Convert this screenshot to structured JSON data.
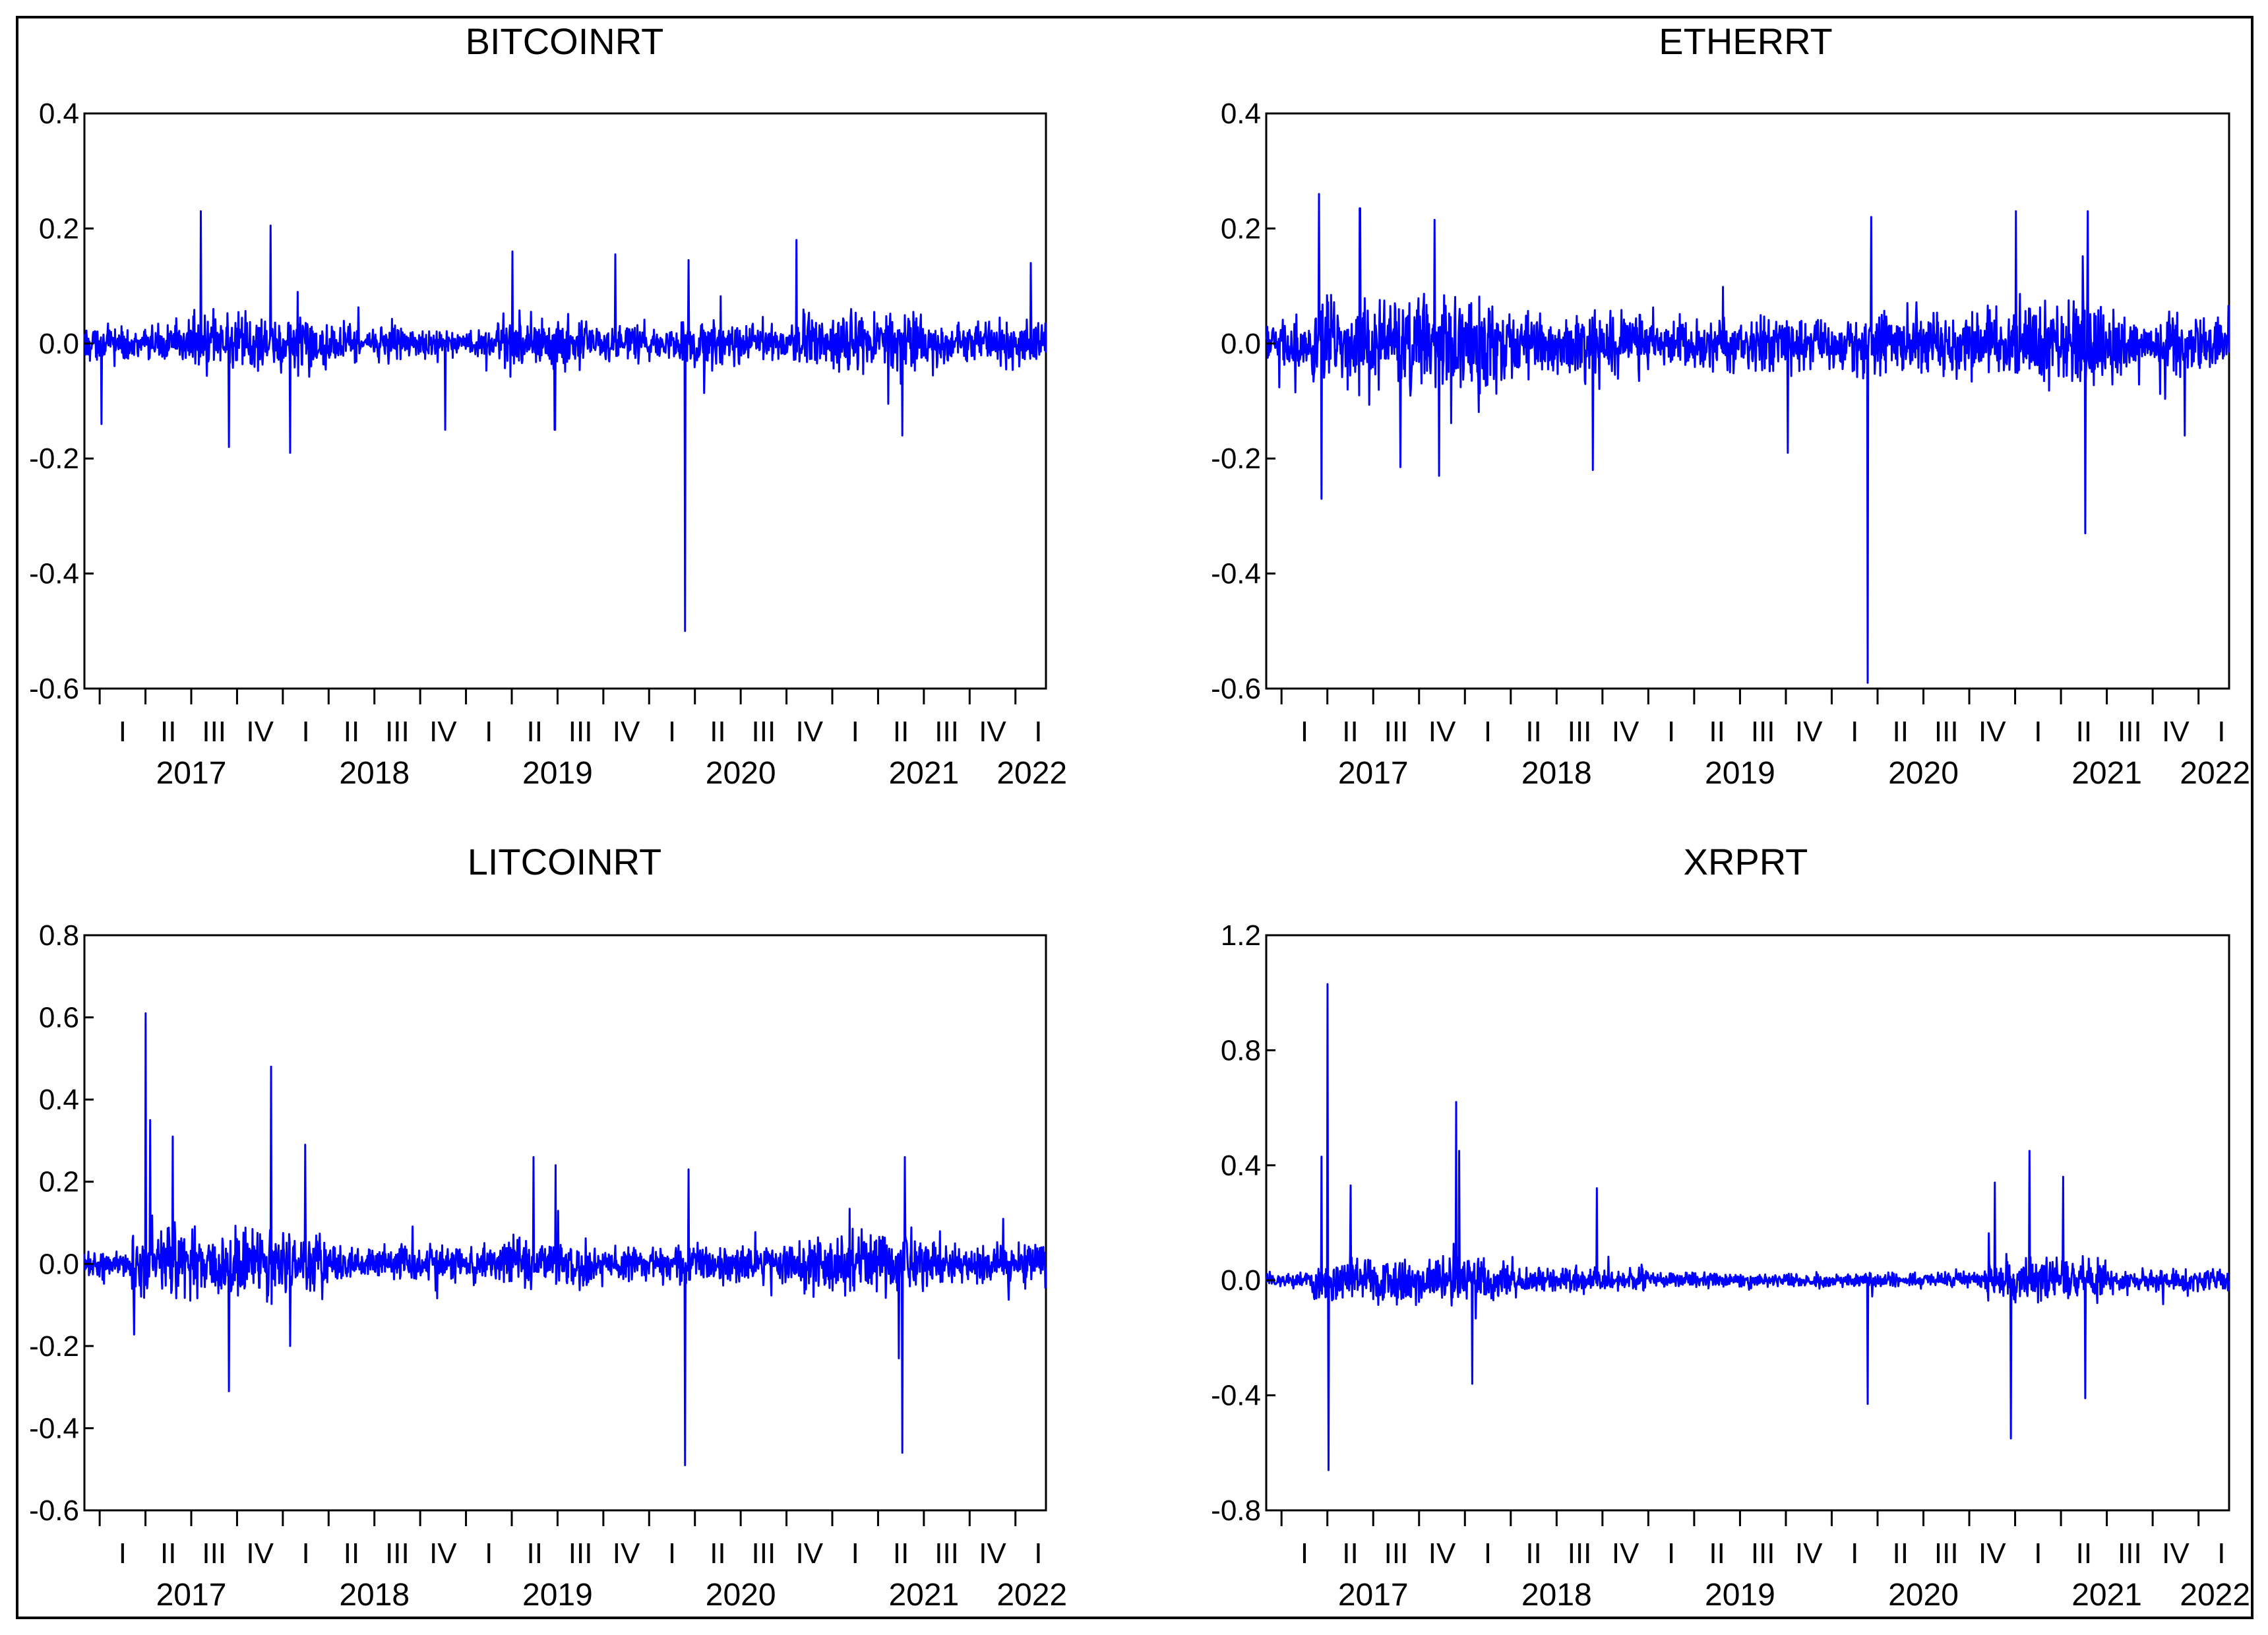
{
  "chart_data": [
    {
      "type": "line",
      "title": "BITCOINRT",
      "xlabel": "",
      "ylabel": "",
      "ylim": [
        -0.6,
        0.4
      ],
      "yticks": [
        0.4,
        0.2,
        0.0,
        -0.2,
        -0.4,
        -0.6
      ],
      "ytick_labels": [
        "0.4",
        "0.2",
        "0.0",
        "-0.2",
        "-0.4",
        "-0.6"
      ],
      "quarter_labels": [
        "I",
        "II",
        "III",
        "IV",
        "I",
        "II",
        "III",
        "IV",
        "I",
        "II",
        "III",
        "IV",
        "I",
        "II",
        "III",
        "IV",
        "I",
        "II",
        "III",
        "IV",
        "I"
      ],
      "year_labels": [
        "2017",
        "2018",
        "2019",
        "2020",
        "2021",
        "2022"
      ],
      "grid": false,
      "color": "#0000ff",
      "x_range": [
        "2016-12",
        "2022-03"
      ],
      "base_amplitude": 0.05,
      "volatility_regimes": [
        {
          "from": "2016-12",
          "to": "2017-06",
          "level": 0.8
        },
        {
          "from": "2017-06",
          "to": "2018-04",
          "level": 1.4
        },
        {
          "from": "2018-04",
          "to": "2018-09",
          "level": 0.9
        },
        {
          "from": "2018-09",
          "to": "2019-03",
          "level": 0.6
        },
        {
          "from": "2019-03",
          "to": "2019-09",
          "level": 1.3
        },
        {
          "from": "2019-09",
          "to": "2020-03",
          "level": 0.8
        },
        {
          "from": "2020-03",
          "to": "2020-06",
          "level": 1.1
        },
        {
          "from": "2020-06",
          "to": "2020-11",
          "level": 0.8
        },
        {
          "from": "2020-11",
          "to": "2021-07",
          "level": 1.5
        },
        {
          "from": "2021-07",
          "to": "2022-03",
          "level": 1.0
        }
      ],
      "spikes": [
        {
          "date": "2017-01-05",
          "value": -0.14
        },
        {
          "date": "2017-09-15",
          "value": -0.18
        },
        {
          "date": "2017-07-20",
          "value": 0.23
        },
        {
          "date": "2017-12-07",
          "value": 0.205
        },
        {
          "date": "2018-01-16",
          "value": -0.19
        },
        {
          "date": "2018-11-20",
          "value": -0.15
        },
        {
          "date": "2019-04-02",
          "value": 0.16
        },
        {
          "date": "2019-06-26",
          "value": -0.15
        },
        {
          "date": "2019-10-25",
          "value": 0.155
        },
        {
          "date": "2020-03-12",
          "value": -0.5
        },
        {
          "date": "2020-03-19",
          "value": 0.145
        },
        {
          "date": "2020-10-21",
          "value": 0.18
        },
        {
          "date": "2021-05-19",
          "value": -0.16
        },
        {
          "date": "2022-02-01",
          "value": 0.14
        }
      ]
    },
    {
      "type": "line",
      "title": "ETHERRT",
      "xlabel": "",
      "ylabel": "",
      "ylim": [
        -0.6,
        0.4
      ],
      "yticks": [
        0.4,
        0.2,
        0.0,
        -0.2,
        -0.4,
        -0.6
      ],
      "ytick_labels": [
        "0.4",
        "0.2",
        "0.0",
        "-0.2",
        "-0.4",
        "-0.6"
      ],
      "quarter_labels": [
        "I",
        "II",
        "III",
        "IV",
        "I",
        "II",
        "III",
        "IV",
        "I",
        "II",
        "III",
        "IV",
        "I",
        "II",
        "III",
        "IV",
        "I",
        "II",
        "III",
        "IV",
        "I"
      ],
      "year_labels": [
        "2017",
        "2018",
        "2019",
        "2020",
        "2021",
        "2022"
      ],
      "grid": false,
      "color": "#0000ff",
      "x_range": [
        "2016-12",
        "2022-03"
      ],
      "base_amplitude": 0.07,
      "volatility_regimes": [
        {
          "from": "2016-12",
          "to": "2017-03",
          "level": 0.8
        },
        {
          "from": "2017-03",
          "to": "2018-04",
          "level": 1.6
        },
        {
          "from": "2018-04",
          "to": "2019-01",
          "level": 1.2
        },
        {
          "from": "2019-01",
          "to": "2020-03",
          "level": 0.9
        },
        {
          "from": "2020-03",
          "to": "2021-01",
          "level": 1.1
        },
        {
          "from": "2021-01",
          "to": "2021-07",
          "level": 1.5
        },
        {
          "from": "2021-07",
          "to": "2022-03",
          "level": 1.0
        }
      ],
      "spikes": [
        {
          "date": "2017-03-15",
          "value": 0.26
        },
        {
          "date": "2017-03-20",
          "value": -0.27
        },
        {
          "date": "2017-06-05",
          "value": 0.235
        },
        {
          "date": "2017-08-25",
          "value": -0.215
        },
        {
          "date": "2017-11-01",
          "value": 0.215
        },
        {
          "date": "2017-11-10",
          "value": -0.23
        },
        {
          "date": "2018-09-12",
          "value": -0.22
        },
        {
          "date": "2019-10-05",
          "value": -0.19
        },
        {
          "date": "2020-03-12",
          "value": -0.59
        },
        {
          "date": "2020-03-19",
          "value": 0.22
        },
        {
          "date": "2021-01-03",
          "value": 0.23
        },
        {
          "date": "2021-05-19",
          "value": -0.33
        },
        {
          "date": "2021-05-24",
          "value": 0.23
        },
        {
          "date": "2021-12-04",
          "value": -0.16
        }
      ]
    },
    {
      "type": "line",
      "title": "LITCOINRT",
      "xlabel": "",
      "ylabel": "",
      "ylim": [
        -0.6,
        0.8
      ],
      "yticks": [
        0.8,
        0.6,
        0.4,
        0.2,
        0.0,
        -0.2,
        -0.4,
        -0.6
      ],
      "ytick_labels": [
        "0.8",
        "0.6",
        "0.4",
        "0.2",
        "0.0",
        "-0.2",
        "-0.4",
        "-0.6"
      ],
      "quarter_labels": [
        "I",
        "II",
        "III",
        "IV",
        "I",
        "II",
        "III",
        "IV",
        "I",
        "II",
        "III",
        "IV",
        "I",
        "II",
        "III",
        "IV",
        "I",
        "II",
        "III",
        "IV",
        "I"
      ],
      "year_labels": [
        "2017",
        "2018",
        "2019",
        "2020",
        "2021",
        "2022"
      ],
      "grid": false,
      "color": "#0000ff",
      "x_range": [
        "2016-12",
        "2022-03"
      ],
      "base_amplitude": 0.07,
      "volatility_regimes": [
        {
          "from": "2016-12",
          "to": "2017-03",
          "level": 0.7
        },
        {
          "from": "2017-03",
          "to": "2018-04",
          "level": 1.7
        },
        {
          "from": "2018-04",
          "to": "2019-03",
          "level": 0.9
        },
        {
          "from": "2019-03",
          "to": "2019-09",
          "level": 1.2
        },
        {
          "from": "2019-09",
          "to": "2020-03",
          "level": 0.8
        },
        {
          "from": "2020-03",
          "to": "2020-11",
          "level": 0.9
        },
        {
          "from": "2020-11",
          "to": "2021-07",
          "level": 1.5
        },
        {
          "from": "2021-07",
          "to": "2022-03",
          "level": 1.0
        }
      ],
      "spikes": [
        {
          "date": "2017-04-01",
          "value": 0.61
        },
        {
          "date": "2017-04-10",
          "value": 0.35
        },
        {
          "date": "2017-05-25",
          "value": 0.31
        },
        {
          "date": "2017-09-15",
          "value": -0.31
        },
        {
          "date": "2017-12-08",
          "value": 0.48
        },
        {
          "date": "2018-01-16",
          "value": -0.2
        },
        {
          "date": "2018-02-15",
          "value": 0.29
        },
        {
          "date": "2019-05-14",
          "value": 0.26
        },
        {
          "date": "2019-06-27",
          "value": 0.24
        },
        {
          "date": "2020-03-12",
          "value": -0.49
        },
        {
          "date": "2020-03-19",
          "value": 0.23
        },
        {
          "date": "2021-05-12",
          "value": -0.23
        },
        {
          "date": "2021-05-19",
          "value": -0.46
        },
        {
          "date": "2021-05-24",
          "value": 0.26
        }
      ]
    },
    {
      "type": "line",
      "title": "XRPRT",
      "xlabel": "",
      "ylabel": "",
      "ylim": [
        -0.8,
        1.2
      ],
      "yticks": [
        1.2,
        0.8,
        0.4,
        0.0,
        -0.4,
        -0.8
      ],
      "ytick_labels": [
        "1.2",
        "0.8",
        "0.4",
        "0.0",
        "-0.4",
        "-0.8"
      ],
      "quarter_labels": [
        "I",
        "II",
        "III",
        "IV",
        "I",
        "II",
        "III",
        "IV",
        "I",
        "II",
        "III",
        "IV",
        "I",
        "II",
        "III",
        "IV",
        "I",
        "II",
        "III",
        "IV",
        "I"
      ],
      "year_labels": [
        "2017",
        "2018",
        "2019",
        "2020",
        "2021",
        "2022"
      ],
      "grid": false,
      "color": "#0000ff",
      "x_range": [
        "2016-12",
        "2022-03"
      ],
      "base_amplitude": 0.06,
      "volatility_regimes": [
        {
          "from": "2016-12",
          "to": "2017-03",
          "level": 0.7
        },
        {
          "from": "2017-03",
          "to": "2018-04",
          "level": 1.8
        },
        {
          "from": "2018-04",
          "to": "2019-01",
          "level": 1.0
        },
        {
          "from": "2019-01",
          "to": "2020-11",
          "level": 0.6
        },
        {
          "from": "2020-11",
          "to": "2021-07",
          "level": 1.7
        },
        {
          "from": "2021-07",
          "to": "2022-03",
          "level": 0.9
        }
      ],
      "spikes": [
        {
          "date": "2017-03-20",
          "value": 0.43
        },
        {
          "date": "2017-04-01",
          "value": 1.03
        },
        {
          "date": "2017-04-03",
          "value": -0.66
        },
        {
          "date": "2017-05-17",
          "value": 0.33
        },
        {
          "date": "2017-12-14",
          "value": 0.62
        },
        {
          "date": "2017-12-20",
          "value": 0.45
        },
        {
          "date": "2018-01-16",
          "value": -0.36
        },
        {
          "date": "2018-09-20",
          "value": 0.32
        },
        {
          "date": "2020-03-12",
          "value": -0.43
        },
        {
          "date": "2020-11-21",
          "value": 0.34
        },
        {
          "date": "2020-12-23",
          "value": -0.55
        },
        {
          "date": "2021-01-30",
          "value": 0.45
        },
        {
          "date": "2021-04-05",
          "value": 0.36
        },
        {
          "date": "2021-05-19",
          "value": -0.41
        }
      ]
    }
  ]
}
